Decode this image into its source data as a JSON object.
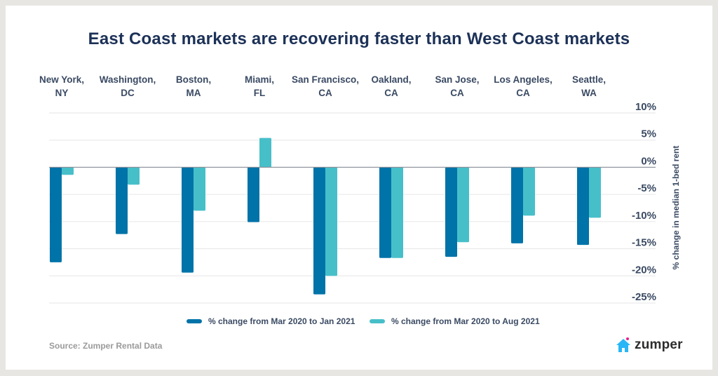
{
  "page": {
    "background": "#e7e6e2",
    "source": "Source: Zumper Rental Data",
    "logo_text": "zumper",
    "logo_color": "#29b6f6",
    "logo_dot_color": "#e91e8c"
  },
  "chart_data": {
    "type": "bar",
    "title": "East Coast markets are recovering faster than West Coast markets",
    "xlabel": "",
    "ylabel": "% change in median 1-bed rent",
    "ylim": [
      -25,
      10
    ],
    "yticks": [
      10,
      5,
      0,
      -5,
      -10,
      -15,
      -20,
      -25
    ],
    "ytick_labels": [
      "10%",
      "5%",
      "0%",
      "-5%",
      "-10%",
      "-15%",
      "-20%",
      "-25%"
    ],
    "grid": true,
    "legend_position": "bottom-center",
    "x_axis_position": "top",
    "y_axis_position": "right",
    "categories": [
      [
        "New York,",
        "NY"
      ],
      [
        "Washington,",
        "DC"
      ],
      [
        "Boston,",
        "MA"
      ],
      [
        "Miami,",
        "FL"
      ],
      [
        "San Francisco,",
        "CA"
      ],
      [
        "Oakland,",
        "CA"
      ],
      [
        "San Jose,",
        "CA"
      ],
      [
        "Los Angeles,",
        "CA"
      ],
      [
        "Seattle,",
        "WA"
      ]
    ],
    "series": [
      {
        "name": "% change from Mar 2020 to Jan 2021",
        "color": "#0073a8",
        "values": [
          -17.5,
          -12.3,
          -19.4,
          -10.1,
          -23.4,
          -16.7,
          -16.5,
          -14.0,
          -14.3
        ]
      },
      {
        "name": "% change from Mar 2020 to Aug 2021",
        "color": "#47bfc9",
        "values": [
          -1.4,
          -3.2,
          -8.0,
          5.4,
          -20.0,
          -16.7,
          -13.8,
          -8.9,
          -9.3
        ]
      }
    ]
  }
}
